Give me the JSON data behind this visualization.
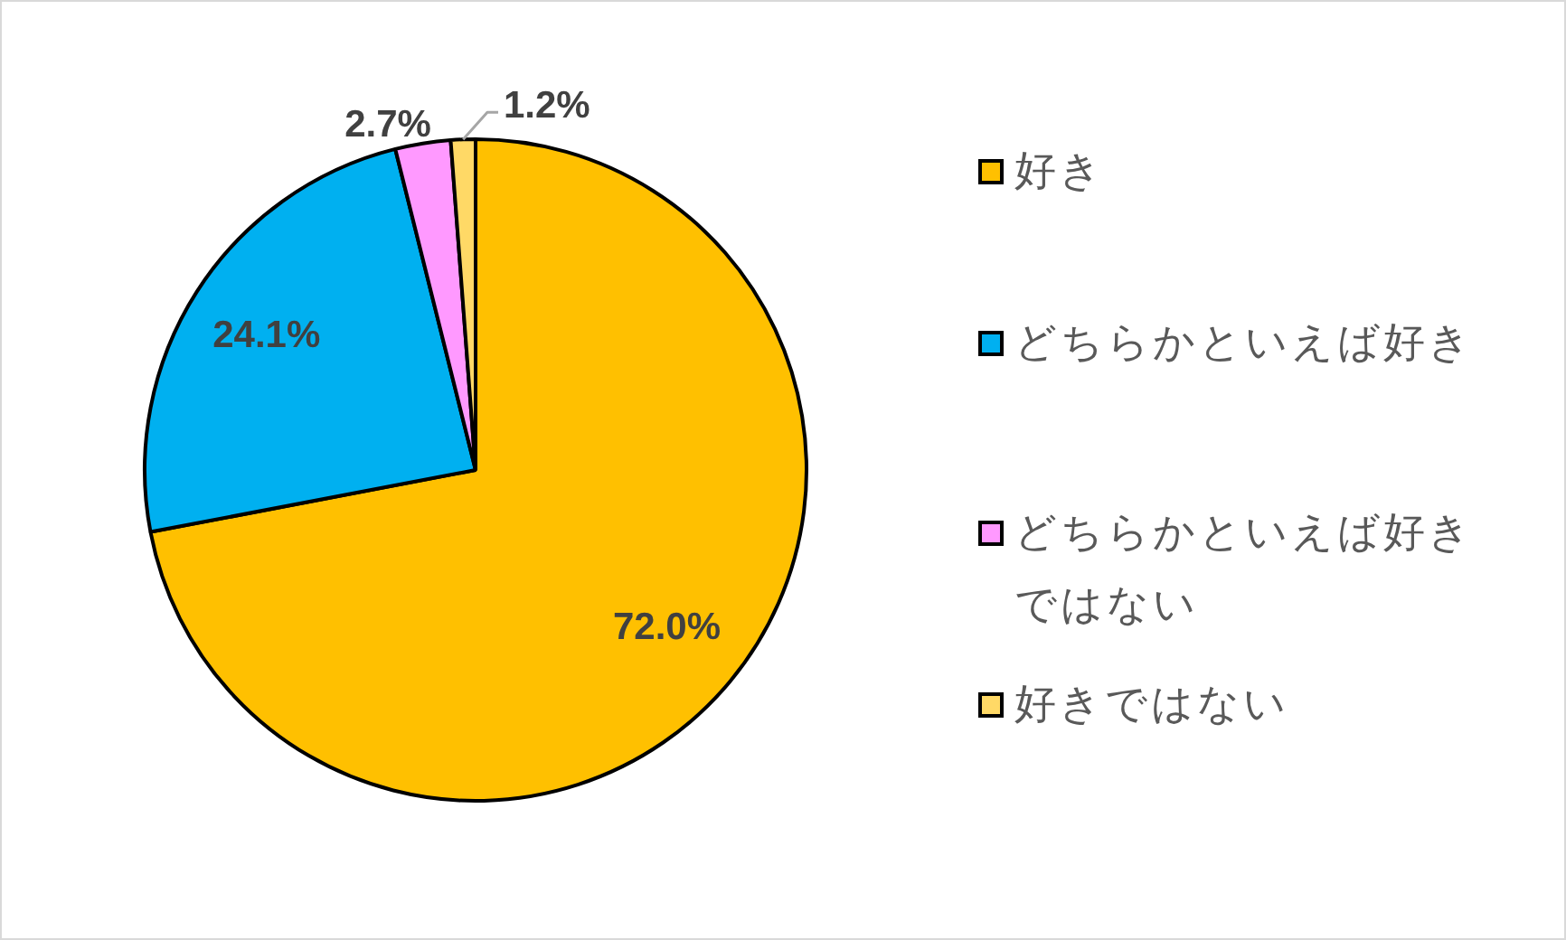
{
  "chart_data": {
    "type": "pie",
    "categories": [
      "好き",
      "どちらかといえば好き",
      "どちらかといえば好きではない",
      "好きではない"
    ],
    "values": [
      72.0,
      24.1,
      2.7,
      1.2
    ],
    "colors": [
      "#ffc000",
      "#00b0f0",
      "#ff99ff",
      "#ffd966"
    ],
    "value_labels": [
      "72.0%",
      "24.1%",
      "2.7%",
      "1.2%"
    ],
    "legend": "right"
  }
}
